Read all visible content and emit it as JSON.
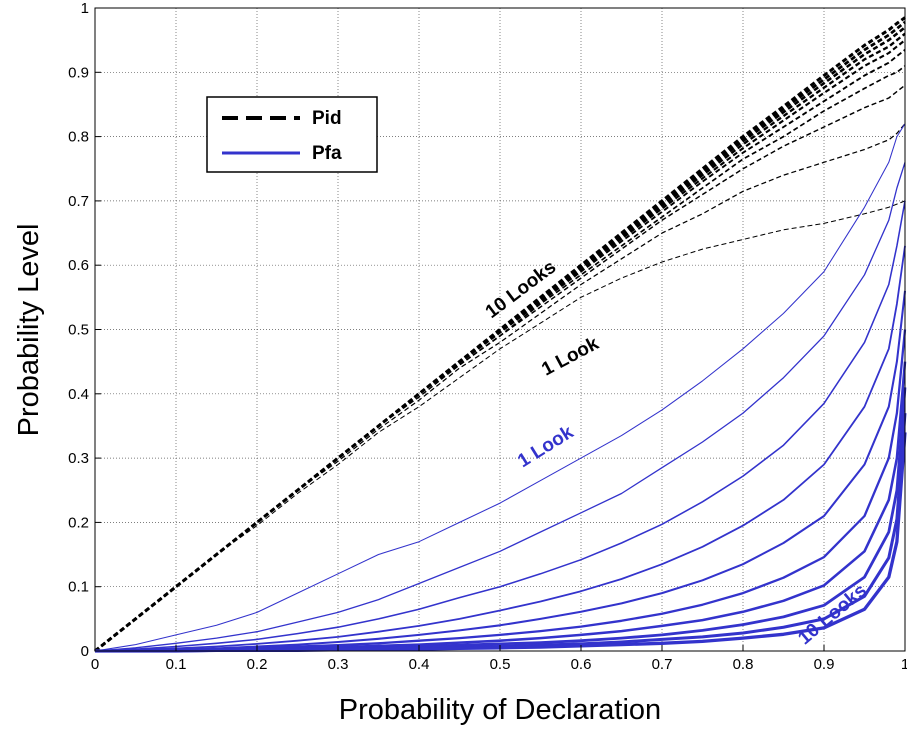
{
  "chart_data": {
    "type": "line",
    "xlabel": "Probability of Declaration",
    "ylabel": "Probability Level",
    "xlim": [
      0,
      1
    ],
    "ylim": [
      0,
      1
    ],
    "x_ticks": [
      "0",
      "0.1",
      "0.2",
      "0.3",
      "0.4",
      "0.5",
      "0.6",
      "0.7",
      "0.8",
      "0.9",
      "1"
    ],
    "y_ticks": [
      "0",
      "0.1",
      "0.2",
      "0.3",
      "0.4",
      "0.5",
      "0.6",
      "0.7",
      "0.8",
      "0.9",
      "1"
    ],
    "grid": true,
    "legend": {
      "placement": "top-left",
      "entries": [
        {
          "label": "Pid",
          "style": "dashed",
          "color": "#000000"
        },
        {
          "label": "Pfa",
          "style": "solid",
          "color": "#3333cc"
        }
      ]
    },
    "x": [
      0,
      0.05,
      0.1,
      0.15,
      0.2,
      0.25,
      0.3,
      0.35,
      0.4,
      0.45,
      0.5,
      0.55,
      0.6,
      0.65,
      0.7,
      0.75,
      0.8,
      0.85,
      0.9,
      0.95,
      0.98,
      0.99,
      1.0
    ],
    "series": [
      {
        "group": "Pid",
        "looks": 1,
        "values": [
          0,
          0.05,
          0.1,
          0.15,
          0.195,
          0.245,
          0.29,
          0.34,
          0.38,
          0.425,
          0.47,
          0.51,
          0.55,
          0.58,
          0.605,
          0.625,
          0.64,
          0.655,
          0.665,
          0.68,
          0.69,
          0.695,
          0.7
        ]
      },
      {
        "group": "Pid",
        "looks": 2,
        "values": [
          0,
          0.05,
          0.1,
          0.15,
          0.2,
          0.25,
          0.295,
          0.345,
          0.39,
          0.44,
          0.48,
          0.525,
          0.57,
          0.61,
          0.65,
          0.68,
          0.715,
          0.74,
          0.76,
          0.78,
          0.795,
          0.805,
          0.82
        ]
      },
      {
        "group": "Pid",
        "looks": 3,
        "values": [
          0,
          0.05,
          0.1,
          0.15,
          0.2,
          0.25,
          0.3,
          0.35,
          0.395,
          0.445,
          0.49,
          0.535,
          0.58,
          0.625,
          0.67,
          0.71,
          0.75,
          0.785,
          0.815,
          0.845,
          0.86,
          0.87,
          0.88
        ]
      },
      {
        "group": "Pid",
        "looks": 4,
        "values": [
          0,
          0.05,
          0.1,
          0.15,
          0.2,
          0.25,
          0.3,
          0.35,
          0.4,
          0.445,
          0.49,
          0.54,
          0.585,
          0.63,
          0.675,
          0.72,
          0.765,
          0.8,
          0.84,
          0.875,
          0.895,
          0.9,
          0.91
        ]
      },
      {
        "group": "Pid",
        "looks": 5,
        "values": [
          0,
          0.05,
          0.1,
          0.15,
          0.2,
          0.25,
          0.3,
          0.35,
          0.4,
          0.448,
          0.495,
          0.543,
          0.59,
          0.637,
          0.683,
          0.73,
          0.775,
          0.815,
          0.855,
          0.895,
          0.915,
          0.925,
          0.935
        ]
      },
      {
        "group": "Pid",
        "looks": 6,
        "values": [
          0,
          0.05,
          0.1,
          0.15,
          0.2,
          0.25,
          0.3,
          0.35,
          0.4,
          0.449,
          0.497,
          0.546,
          0.593,
          0.641,
          0.688,
          0.735,
          0.782,
          0.825,
          0.868,
          0.91,
          0.93,
          0.94,
          0.95
        ]
      },
      {
        "group": "Pid",
        "looks": 7,
        "values": [
          0,
          0.05,
          0.1,
          0.15,
          0.2,
          0.25,
          0.3,
          0.35,
          0.4,
          0.45,
          0.498,
          0.547,
          0.595,
          0.644,
          0.692,
          0.74,
          0.788,
          0.832,
          0.876,
          0.92,
          0.94,
          0.95,
          0.96
        ]
      },
      {
        "group": "Pid",
        "looks": 8,
        "values": [
          0,
          0.05,
          0.1,
          0.15,
          0.2,
          0.25,
          0.3,
          0.35,
          0.4,
          0.45,
          0.499,
          0.548,
          0.597,
          0.646,
          0.695,
          0.744,
          0.793,
          0.838,
          0.883,
          0.928,
          0.95,
          0.96,
          0.97
        ]
      },
      {
        "group": "Pid",
        "looks": 9,
        "values": [
          0,
          0.05,
          0.1,
          0.15,
          0.2,
          0.25,
          0.3,
          0.35,
          0.4,
          0.45,
          0.5,
          0.549,
          0.598,
          0.648,
          0.698,
          0.747,
          0.797,
          0.843,
          0.889,
          0.935,
          0.958,
          0.968,
          0.978
        ]
      },
      {
        "group": "Pid",
        "looks": 10,
        "values": [
          0,
          0.05,
          0.1,
          0.15,
          0.2,
          0.25,
          0.3,
          0.35,
          0.4,
          0.45,
          0.5,
          0.55,
          0.6,
          0.65,
          0.7,
          0.75,
          0.8,
          0.847,
          0.895,
          0.942,
          0.966,
          0.976,
          0.985
        ]
      },
      {
        "group": "Pfa",
        "looks": 1,
        "values": [
          0,
          0.01,
          0.025,
          0.04,
          0.06,
          0.09,
          0.12,
          0.15,
          0.17,
          0.2,
          0.23,
          0.265,
          0.3,
          0.335,
          0.375,
          0.42,
          0.47,
          0.525,
          0.59,
          0.69,
          0.76,
          0.8,
          0.82
        ]
      },
      {
        "group": "Pfa",
        "looks": 2,
        "values": [
          0,
          0.005,
          0.012,
          0.02,
          0.03,
          0.045,
          0.06,
          0.08,
          0.105,
          0.13,
          0.155,
          0.185,
          0.215,
          0.245,
          0.285,
          0.325,
          0.37,
          0.425,
          0.49,
          0.585,
          0.67,
          0.72,
          0.76
        ]
      },
      {
        "group": "Pfa",
        "looks": 3,
        "values": [
          0,
          0.003,
          0.007,
          0.012,
          0.018,
          0.027,
          0.037,
          0.05,
          0.065,
          0.083,
          0.1,
          0.12,
          0.142,
          0.168,
          0.197,
          0.232,
          0.272,
          0.32,
          0.385,
          0.48,
          0.57,
          0.63,
          0.7
        ]
      },
      {
        "group": "Pfa",
        "looks": 4,
        "values": [
          0,
          0.002,
          0.004,
          0.007,
          0.011,
          0.016,
          0.022,
          0.03,
          0.039,
          0.05,
          0.063,
          0.077,
          0.093,
          0.112,
          0.135,
          0.162,
          0.195,
          0.235,
          0.29,
          0.38,
          0.47,
          0.54,
          0.63
        ]
      },
      {
        "group": "Pfa",
        "looks": 5,
        "values": [
          0,
          0.001,
          0.002,
          0.004,
          0.007,
          0.01,
          0.014,
          0.019,
          0.025,
          0.032,
          0.04,
          0.05,
          0.061,
          0.074,
          0.09,
          0.11,
          0.135,
          0.168,
          0.21,
          0.29,
          0.38,
          0.45,
          0.56
        ]
      },
      {
        "group": "Pfa",
        "looks": 6,
        "values": [
          0,
          0.001,
          0.002,
          0.003,
          0.005,
          0.007,
          0.009,
          0.012,
          0.016,
          0.02,
          0.025,
          0.031,
          0.038,
          0.047,
          0.058,
          0.072,
          0.09,
          0.114,
          0.146,
          0.21,
          0.3,
          0.37,
          0.5
        ]
      },
      {
        "group": "Pfa",
        "looks": 7,
        "values": [
          0,
          0.0,
          0.001,
          0.002,
          0.003,
          0.004,
          0.006,
          0.008,
          0.01,
          0.013,
          0.016,
          0.02,
          0.025,
          0.031,
          0.039,
          0.048,
          0.061,
          0.078,
          0.102,
          0.155,
          0.235,
          0.3,
          0.45
        ]
      },
      {
        "group": "Pfa",
        "looks": 8,
        "values": [
          0,
          0.0,
          0.001,
          0.001,
          0.002,
          0.003,
          0.004,
          0.005,
          0.007,
          0.009,
          0.011,
          0.013,
          0.016,
          0.02,
          0.025,
          0.032,
          0.041,
          0.053,
          0.071,
          0.115,
          0.185,
          0.25,
          0.41
        ]
      },
      {
        "group": "Pfa",
        "looks": 9,
        "values": [
          0,
          0.0,
          0.0,
          0.001,
          0.001,
          0.002,
          0.003,
          0.004,
          0.005,
          0.006,
          0.007,
          0.009,
          0.011,
          0.014,
          0.018,
          0.022,
          0.028,
          0.037,
          0.05,
          0.085,
          0.145,
          0.205,
          0.37
        ]
      },
      {
        "group": "Pfa",
        "looks": 10,
        "values": [
          0,
          0.0,
          0.0,
          0.001,
          0.001,
          0.001,
          0.002,
          0.003,
          0.003,
          0.004,
          0.005,
          0.006,
          0.008,
          0.01,
          0.012,
          0.015,
          0.02,
          0.026,
          0.036,
          0.065,
          0.115,
          0.17,
          0.34
        ]
      }
    ],
    "annotations": [
      {
        "text": "10 Looks",
        "color": "#000000",
        "x": 0.53,
        "y": 0.555,
        "rotation": -37
      },
      {
        "text": "1 Look",
        "color": "#000000",
        "x": 0.59,
        "y": 0.45,
        "rotation": -28
      },
      {
        "text": "1 Look",
        "color": "#3333cc",
        "x": 0.56,
        "y": 0.31,
        "rotation": -32
      },
      {
        "text": "10 Looks",
        "color": "#3333cc",
        "x": 0.915,
        "y": 0.05,
        "rotation": -40
      }
    ],
    "colors": {
      "pid": "#000000",
      "pfa": "#3333cc",
      "grid": "#555555"
    }
  }
}
